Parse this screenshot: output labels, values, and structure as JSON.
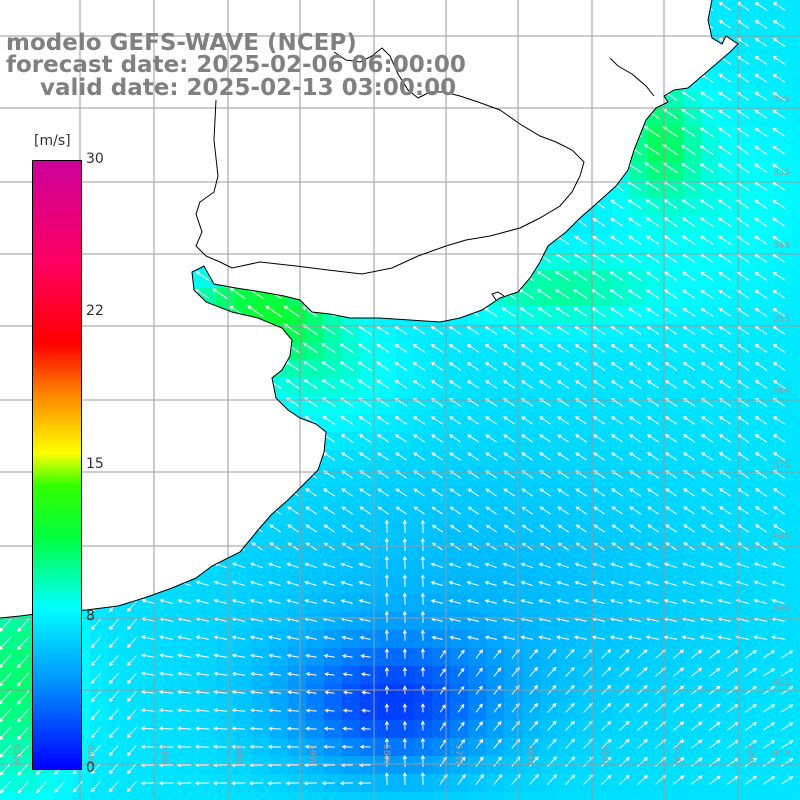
{
  "title": {
    "model": "modelo GEFS-WAVE (NCEP)",
    "forecast_date": "forecast date: 2025-02-06 06:00:00",
    "valid_date": "valid date: 2025-02-13 03:00:00"
  },
  "colorbar": {
    "unit": "[m/s]",
    "min": 0,
    "max": 30,
    "tick_labels": [
      "30",
      "22",
      "15",
      "8",
      "0"
    ],
    "colors": [
      "#0000ff",
      "#0090ff",
      "#00ffff",
      "#00ff40",
      "#33ff00",
      "#ffff00",
      "#ff8000",
      "#ff0000",
      "#cc0099"
    ]
  },
  "map": {
    "variable": "wind speed and direction",
    "land_color": "#ffffff",
    "grid_color": "#9a9a9a",
    "coast_color": "#000000",
    "vector_color": "#ffffff",
    "lat_labels": [
      "32S",
      "33S",
      "34S",
      "35S",
      "36S",
      "37S",
      "38S",
      "39S",
      "40S",
      "41S"
    ],
    "lon_labels": [
      "63W",
      "62W",
      "61W",
      "60W",
      "59W",
      "58W",
      "57W",
      "56W",
      "55W",
      "54W",
      "53W",
      "52W",
      "51W"
    ]
  }
}
